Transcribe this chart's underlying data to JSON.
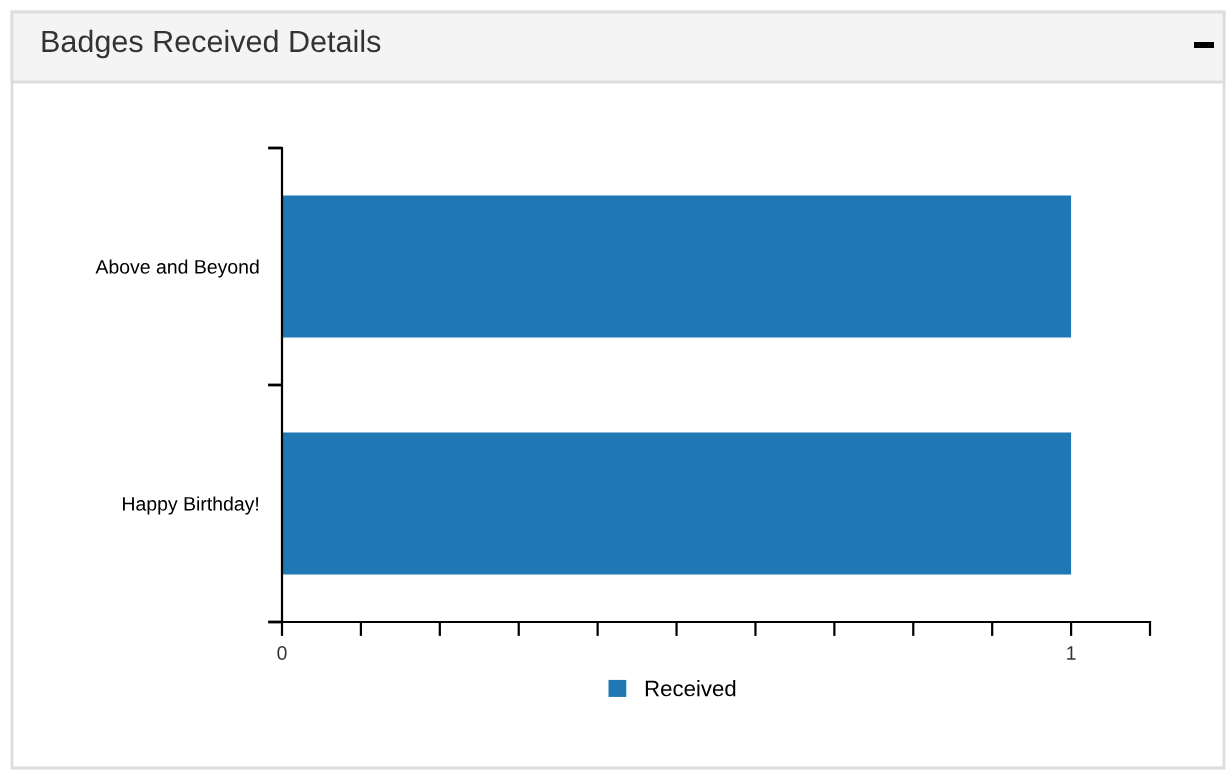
{
  "chart_data": {
    "type": "bar",
    "orientation": "horizontal",
    "title": "Badges Received Details",
    "categories": [
      "Above and Beyond",
      "Happy Birthday!"
    ],
    "series": [
      {
        "name": "Received",
        "color": "#1f77b4",
        "values": [
          1,
          1
        ]
      }
    ],
    "xlim": [
      0,
      1.1
    ],
    "xticks": [
      0,
      {
        "value": 0.1,
        "label": null
      },
      {
        "value": 0.2,
        "label": null
      },
      {
        "value": 0.3,
        "label": null
      },
      {
        "value": 0.4,
        "label": null
      },
      {
        "value": 0.5,
        "label": null
      },
      {
        "value": 0.6,
        "label": null
      },
      {
        "value": 0.7,
        "label": null
      },
      {
        "value": 0.8,
        "label": null
      },
      {
        "value": 0.9,
        "label": null
      },
      1,
      {
        "value": 1.1,
        "label": null
      }
    ],
    "grid": false,
    "legend": "bottom"
  }
}
